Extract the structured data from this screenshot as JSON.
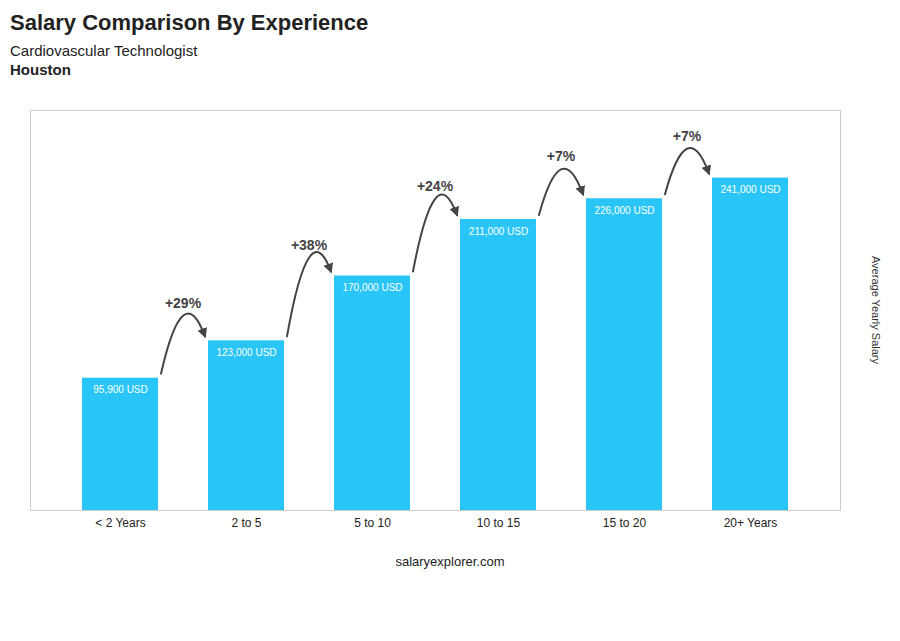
{
  "chart_data": {
    "type": "bar",
    "title": "Salary Comparison By Experience",
    "subtitle": [
      "Cardiovascular Technologist",
      "Houston"
    ],
    "caption": "salaryexplorer.com",
    "ylabel": "Average Yearly Salary",
    "categories": [
      "< 2 Years",
      "2 to 5",
      "5 to 10",
      "10 to 15",
      "15 to 20",
      "20+ Years"
    ],
    "values": [
      95900,
      123000,
      170000,
      211000,
      226000,
      241000
    ],
    "value_labels": [
      "95,900 USD",
      "123,000 USD",
      "170,000 USD",
      "211,000 USD",
      "226,000 USD",
      "241,000 USD"
    ],
    "data_labels": true,
    "color": "#29c5f6",
    "ylim": [
      0,
      290000
    ],
    "tick_labels": "x",
    "grid": false,
    "annotations": [
      {
        "text": "+29%",
        "from": "< 2 Years",
        "to": "2 to 5"
      },
      {
        "text": "+38%",
        "from": "2 to 5",
        "to": "5 to 10"
      },
      {
        "text": "+24%",
        "from": "5 to 10",
        "to": "10 to 15"
      },
      {
        "text": "+7%",
        "from": "10 to 15",
        "to": "15 to 20"
      },
      {
        "text": "+7%",
        "from": "15 to 20",
        "to": "20+ Years"
      }
    ]
  }
}
